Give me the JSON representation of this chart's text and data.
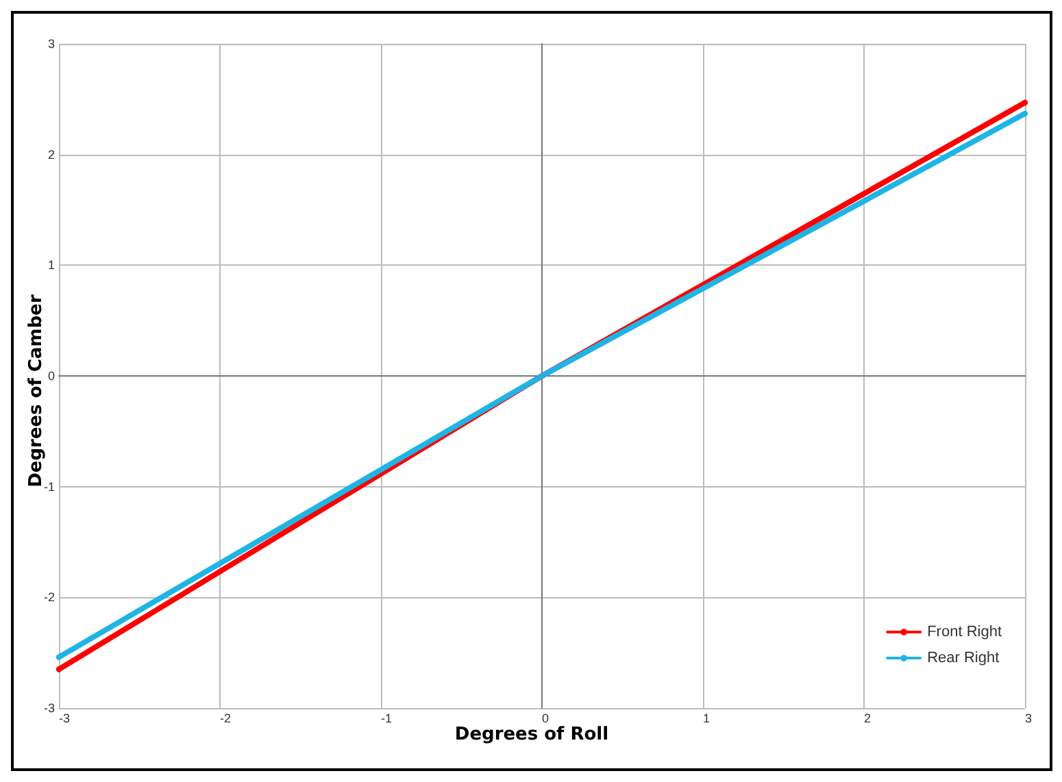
{
  "chart_data": {
    "type": "line",
    "xlabel": "Degrees of Roll",
    "ylabel": "Degrees of Camber",
    "series": [
      {
        "name": "Front Right",
        "color": "#ff0000",
        "x": [
          -3,
          0,
          3
        ],
        "values": [
          -2.65,
          0,
          2.47
        ]
      },
      {
        "name": "Rear Right",
        "color": "#1fb4e6",
        "x": [
          -3,
          0,
          3
        ],
        "values": [
          -2.54,
          0,
          2.37
        ]
      }
    ],
    "xlim": [
      -3,
      3
    ],
    "ylim": [
      -3,
      3
    ],
    "xticks": [
      -3,
      -2,
      -1,
      0,
      1,
      2,
      3
    ],
    "yticks": [
      -3,
      -2,
      -1,
      0,
      1,
      2,
      3
    ],
    "grid": true,
    "legend": "bottom right",
    "marker": "circle",
    "line_style": "solid"
  }
}
